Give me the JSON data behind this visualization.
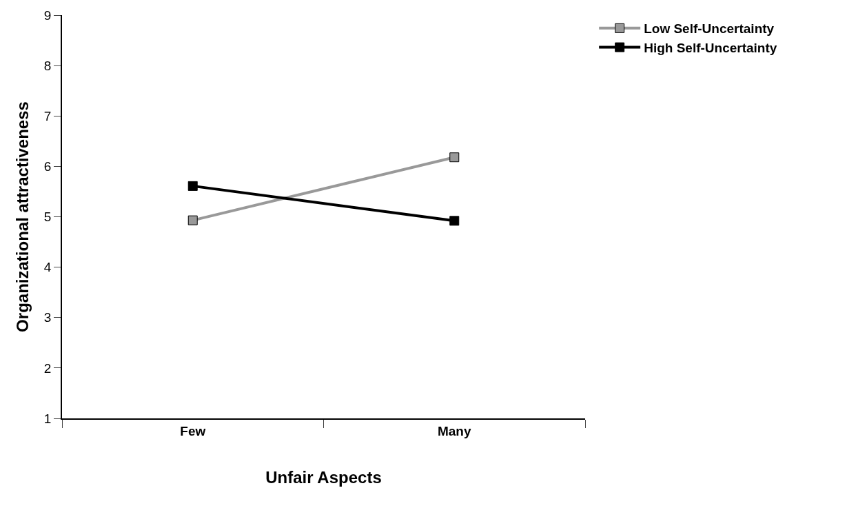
{
  "chart_data": {
    "type": "line",
    "xlabel": "Unfair Aspects",
    "ylabel": "Organizational attractiveness",
    "categories": [
      "Few",
      "Many"
    ],
    "series": [
      {
        "name": "Low Self-Uncertainty",
        "color": "#999999",
        "values": [
          4.93,
          6.18
        ]
      },
      {
        "name": "High Self-Uncertainty",
        "color": "#000000",
        "values": [
          5.61,
          4.92
        ]
      }
    ],
    "ylim": [
      1,
      9
    ],
    "yticks": [
      1,
      2,
      3,
      4,
      5,
      6,
      7,
      8,
      9
    ],
    "legend": "top right",
    "marker": "square",
    "line_style": "solid"
  }
}
